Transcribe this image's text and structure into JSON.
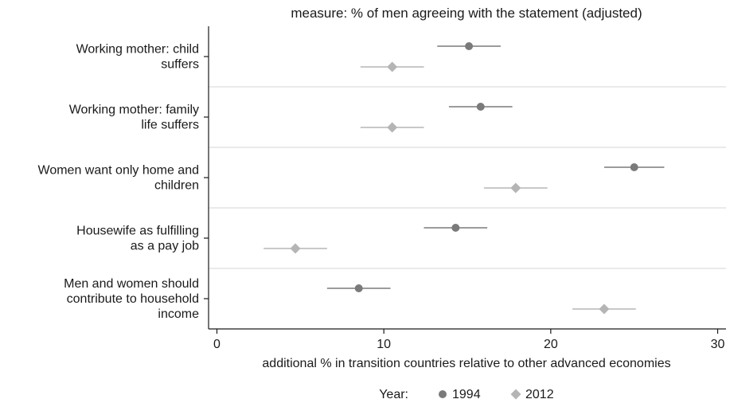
{
  "chart_data": {
    "type": "dot-errorbar",
    "title": "measure: % of men agreeing with the statement (adjusted)",
    "xlabel": "additional % in transition countries relative to other advanced economies",
    "xlim": [
      -0.5,
      30.5
    ],
    "xticks": [
      0,
      10,
      20,
      30
    ],
    "categories": [
      [
        "Working mother: child",
        "suffers"
      ],
      [
        "Working mother: family",
        "life suffers"
      ],
      [
        "Women want only home and",
        "children"
      ],
      [
        "Housewife as fulfilling",
        "as a pay job"
      ],
      [
        "Men and women should",
        "contribute to household",
        "income"
      ]
    ],
    "series": [
      {
        "name": "1994",
        "marker": "circle",
        "color": "#7a7a7a",
        "values": [
          15.1,
          15.8,
          25.0,
          14.3,
          8.5
        ],
        "ci_low": [
          13.2,
          13.9,
          23.2,
          12.4,
          6.6
        ],
        "ci_high": [
          17.0,
          17.7,
          26.8,
          16.2,
          10.4
        ]
      },
      {
        "name": "2012",
        "marker": "diamond",
        "color": "#b5b5b5",
        "values": [
          10.5,
          10.5,
          17.9,
          4.7,
          23.2
        ],
        "ci_low": [
          8.6,
          8.6,
          16.0,
          2.8,
          21.3
        ],
        "ci_high": [
          12.4,
          12.4,
          19.8,
          6.6,
          25.1
        ]
      }
    ],
    "legend": {
      "title": "Year:",
      "position": "bottom"
    },
    "grid": "horizontal separators"
  }
}
